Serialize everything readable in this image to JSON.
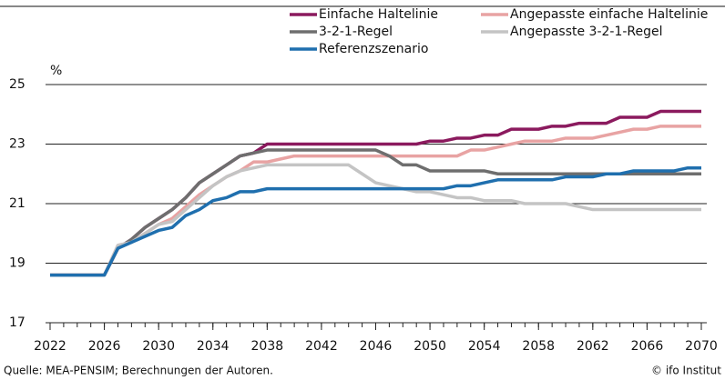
{
  "chart_data": {
    "type": "line",
    "y_unit": "%",
    "source": "Quelle: MEA-PENSIM; Berechnungen der Autoren.",
    "copyright": "© ifo Institut",
    "x": [
      2022,
      2023,
      2024,
      2025,
      2026,
      2027,
      2028,
      2029,
      2030,
      2031,
      2032,
      2033,
      2034,
      2035,
      2036,
      2037,
      2038,
      2039,
      2040,
      2041,
      2042,
      2043,
      2044,
      2045,
      2046,
      2047,
      2048,
      2049,
      2050,
      2051,
      2052,
      2053,
      2054,
      2055,
      2056,
      2057,
      2058,
      2059,
      2060,
      2061,
      2062,
      2063,
      2064,
      2065,
      2066,
      2067,
      2068,
      2069,
      2070
    ],
    "xlim": [
      2022,
      2070
    ],
    "xticks": [
      2022,
      2026,
      2030,
      2034,
      2038,
      2042,
      2046,
      2050,
      2054,
      2058,
      2062,
      2066,
      2070
    ],
    "ylim": [
      17,
      25
    ],
    "yticks": [
      17,
      19,
      21,
      23,
      25
    ],
    "grid": true,
    "series": [
      {
        "name": "Einfache Haltelinie",
        "color": "#8b1a5e",
        "values": [
          18.6,
          18.6,
          18.6,
          18.6,
          18.6,
          19.5,
          19.8,
          20.2,
          20.5,
          20.8,
          21.2,
          21.7,
          22.0,
          22.3,
          22.6,
          22.7,
          23.0,
          23.0,
          23.0,
          23.0,
          23.0,
          23.0,
          23.0,
          23.0,
          23.0,
          23.0,
          23.0,
          23.0,
          23.1,
          23.1,
          23.2,
          23.2,
          23.3,
          23.3,
          23.5,
          23.5,
          23.5,
          23.6,
          23.6,
          23.7,
          23.7,
          23.7,
          23.9,
          23.9,
          23.9,
          24.1,
          24.1,
          24.1,
          24.1
        ]
      },
      {
        "name": "Angepasste einfache Haltelinie",
        "color": "#e8a3a3",
        "values": [
          18.6,
          18.6,
          18.6,
          18.6,
          18.6,
          19.6,
          19.7,
          20.0,
          20.3,
          20.5,
          20.9,
          21.3,
          21.6,
          21.9,
          22.1,
          22.4,
          22.4,
          22.5,
          22.6,
          22.6,
          22.6,
          22.6,
          22.6,
          22.6,
          22.6,
          22.6,
          22.6,
          22.6,
          22.6,
          22.6,
          22.6,
          22.8,
          22.8,
          22.9,
          23.0,
          23.1,
          23.1,
          23.1,
          23.2,
          23.2,
          23.2,
          23.3,
          23.4,
          23.5,
          23.5,
          23.6,
          23.6,
          23.6,
          23.6
        ]
      },
      {
        "name": "3-2-1-Regel",
        "color": "#6e6e6e",
        "values": [
          18.6,
          18.6,
          18.6,
          18.6,
          18.6,
          19.5,
          19.8,
          20.2,
          20.5,
          20.8,
          21.2,
          21.7,
          22.0,
          22.3,
          22.6,
          22.7,
          22.8,
          22.8,
          22.8,
          22.8,
          22.8,
          22.8,
          22.8,
          22.8,
          22.8,
          22.6,
          22.3,
          22.3,
          22.1,
          22.1,
          22.1,
          22.1,
          22.1,
          22.0,
          22.0,
          22.0,
          22.0,
          22.0,
          22.0,
          22.0,
          22.0,
          22.0,
          22.0,
          22.0,
          22.0,
          22.0,
          22.0,
          22.0,
          22.0
        ]
      },
      {
        "name": "Angepasste 3-2-1-Regel",
        "color": "#c4c4c4",
        "values": [
          18.6,
          18.6,
          18.6,
          18.6,
          18.6,
          19.6,
          19.7,
          20.0,
          20.3,
          20.4,
          20.8,
          21.2,
          21.6,
          21.9,
          22.1,
          22.2,
          22.3,
          22.3,
          22.3,
          22.3,
          22.3,
          22.3,
          22.3,
          22.0,
          21.7,
          21.6,
          21.5,
          21.4,
          21.4,
          21.3,
          21.2,
          21.2,
          21.1,
          21.1,
          21.1,
          21.0,
          21.0,
          21.0,
          21.0,
          20.9,
          20.8,
          20.8,
          20.8,
          20.8,
          20.8,
          20.8,
          20.8,
          20.8,
          20.8
        ]
      },
      {
        "name": "Referenzszenario",
        "color": "#1f6fae",
        "values": [
          18.6,
          18.6,
          18.6,
          18.6,
          18.6,
          19.5,
          19.7,
          19.9,
          20.1,
          20.2,
          20.6,
          20.8,
          21.1,
          21.2,
          21.4,
          21.4,
          21.5,
          21.5,
          21.5,
          21.5,
          21.5,
          21.5,
          21.5,
          21.5,
          21.5,
          21.5,
          21.5,
          21.5,
          21.5,
          21.5,
          21.6,
          21.6,
          21.7,
          21.8,
          21.8,
          21.8,
          21.8,
          21.8,
          21.9,
          21.9,
          21.9,
          22.0,
          22.0,
          22.1,
          22.1,
          22.1,
          22.1,
          22.2,
          22.2
        ]
      }
    ]
  }
}
